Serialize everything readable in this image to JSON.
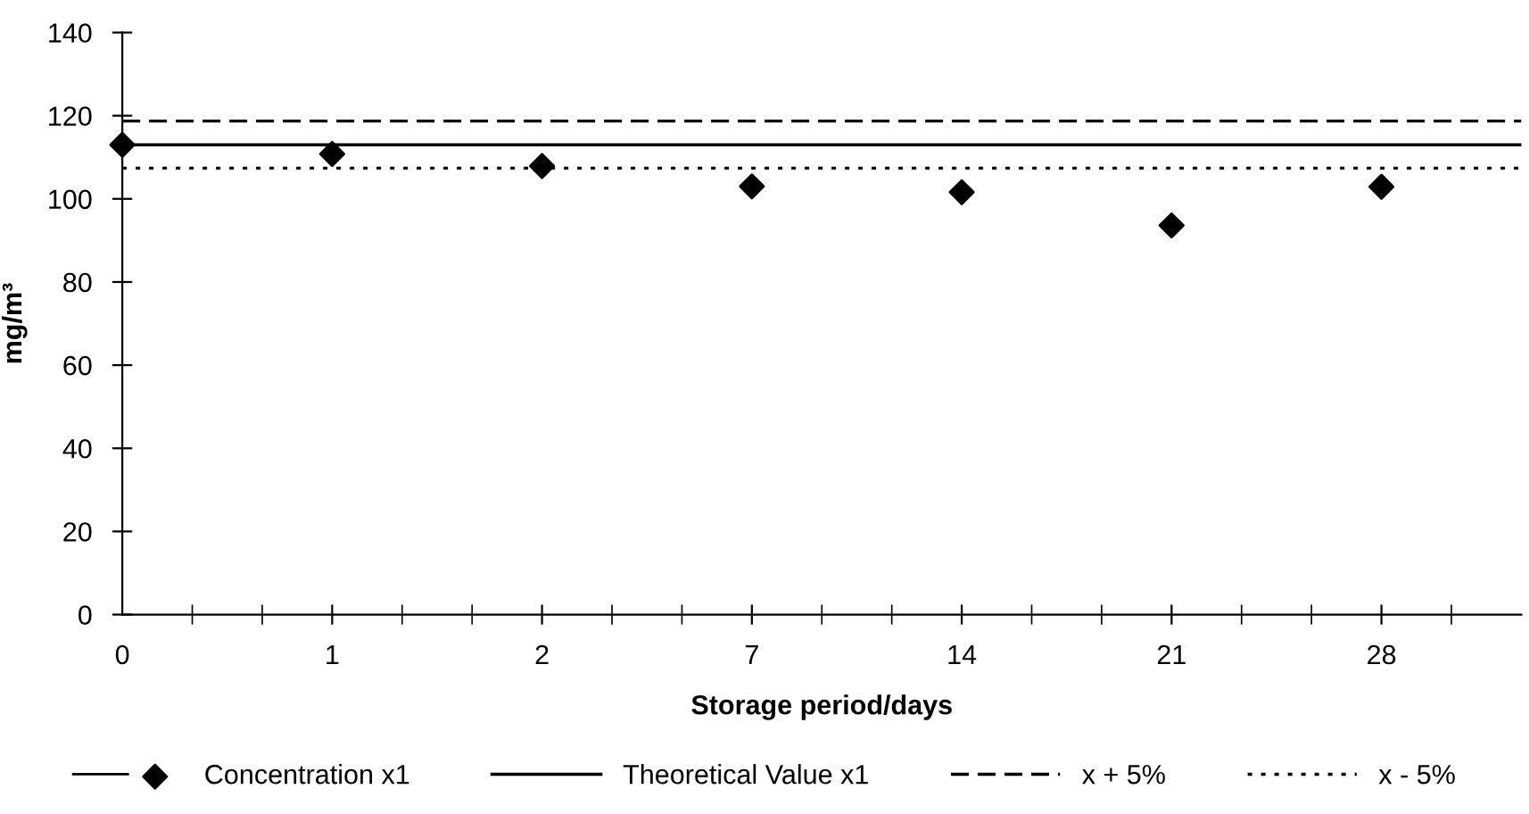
{
  "chart_data": {
    "type": "scatter",
    "xlabel": "Storage period/days",
    "ylabel": "mg/m³",
    "categories": [
      "0",
      "1",
      "2",
      "7",
      "14",
      "21",
      "28"
    ],
    "series": [
      {
        "name": "Concentration x1",
        "color": "#000000",
        "marker": "diamond",
        "values": [
          113,
          110.8,
          107.9,
          103,
          101.6,
          93.6,
          102.9
        ]
      }
    ],
    "ref_lines": [
      {
        "axis": "y",
        "value": 113,
        "label": "Theoretical Value x1",
        "color": "#000000",
        "line_style": "solid"
      },
      {
        "axis": "y",
        "value": 118.7,
        "label": "x + 5%",
        "color": "#000000",
        "line_style": "dashed"
      },
      {
        "axis": "y",
        "value": 107.4,
        "label": "x - 5%",
        "color": "#000000",
        "line_style": "dotted"
      }
    ],
    "ylim": [
      0,
      140
    ],
    "yticks": [
      0,
      20,
      40,
      60,
      80,
      100,
      120,
      140
    ],
    "grid": false,
    "legend": "bottom"
  }
}
